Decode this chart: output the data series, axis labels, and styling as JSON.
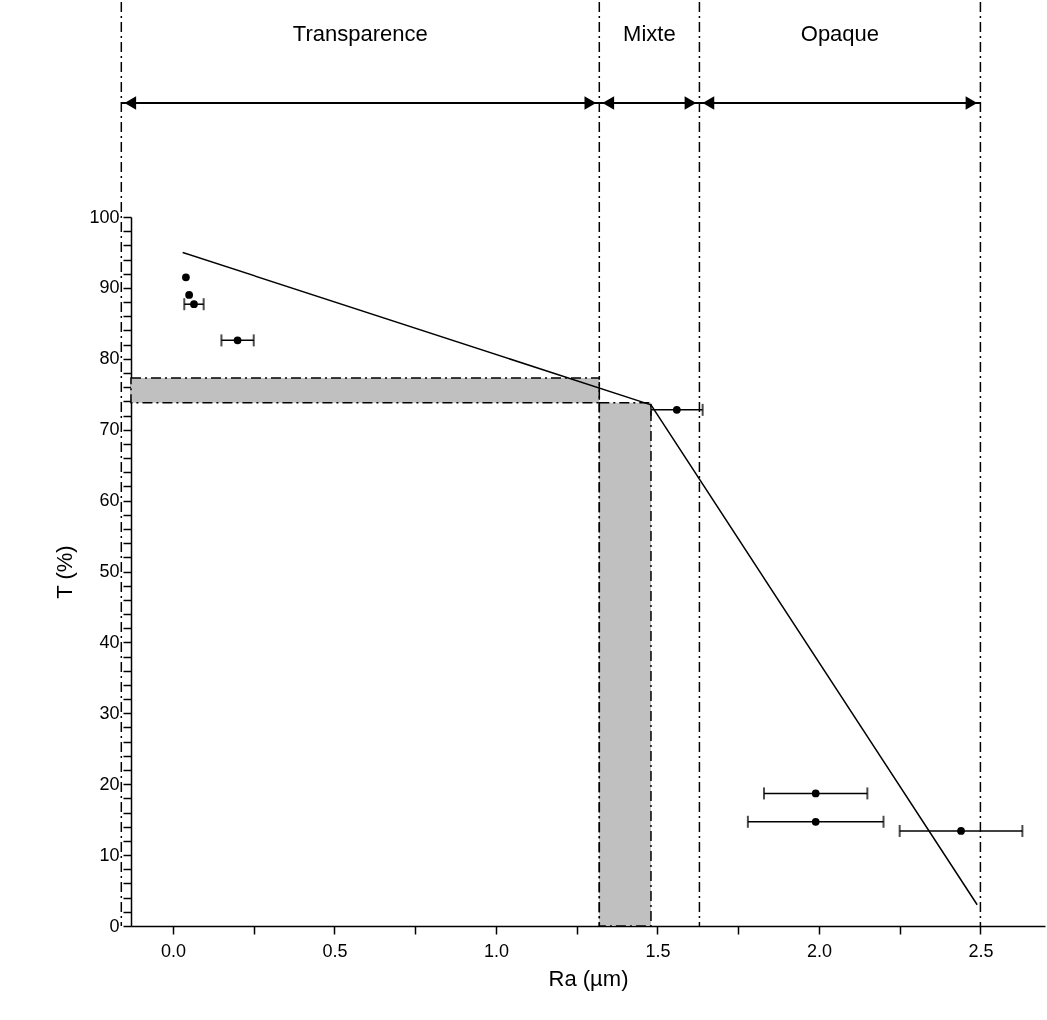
{
  "chart_data": {
    "type": "scatter",
    "xlabel": "Ra (µm)",
    "ylabel": "T (%)",
    "xlim": [
      -0.13,
      2.7
    ],
    "ylim": [
      0,
      100
    ],
    "xticks": [
      {
        "value": 0,
        "label": "0.0"
      },
      {
        "value": 0.25,
        "label": null
      },
      0.5,
      {
        "value": 0.75,
        "label": null
      },
      {
        "value": 1,
        "label": "1.0"
      },
      {
        "value": 1.25,
        "label": null
      },
      1.5,
      {
        "value": 1.75,
        "label": null
      },
      {
        "value": 2,
        "label": "2.0"
      },
      {
        "value": 2.25,
        "label": null
      },
      2.5
    ],
    "yticks": [
      0,
      {
        "value": 2,
        "label": null
      },
      {
        "value": 4,
        "label": null
      },
      {
        "value": 6,
        "label": null
      },
      {
        "value": 8,
        "label": null
      },
      10,
      {
        "value": 12,
        "label": null
      },
      {
        "value": 14,
        "label": null
      },
      {
        "value": 16,
        "label": null
      },
      {
        "value": 18,
        "label": null
      },
      20,
      {
        "value": 22,
        "label": null
      },
      {
        "value": 24,
        "label": null
      },
      {
        "value": 26,
        "label": null
      },
      {
        "value": 28,
        "label": null
      },
      30,
      {
        "value": 32,
        "label": null
      },
      {
        "value": 34,
        "label": null
      },
      {
        "value": 36,
        "label": null
      },
      {
        "value": 38,
        "label": null
      },
      40,
      {
        "value": 42,
        "label": null
      },
      {
        "value": 44,
        "label": null
      },
      {
        "value": 46,
        "label": null
      },
      {
        "value": 48,
        "label": null
      },
      50,
      {
        "value": 52,
        "label": null
      },
      {
        "value": 54,
        "label": null
      },
      {
        "value": 56,
        "label": null
      },
      {
        "value": 58,
        "label": null
      },
      60,
      {
        "value": 62,
        "label": null
      },
      {
        "value": 64,
        "label": null
      },
      {
        "value": 66,
        "label": null
      },
      {
        "value": 68,
        "label": null
      },
      70,
      {
        "value": 72,
        "label": null
      },
      {
        "value": 74,
        "label": null
      },
      {
        "value": 76,
        "label": null
      },
      {
        "value": 78,
        "label": null
      },
      80,
      {
        "value": 82,
        "label": null
      },
      {
        "value": 84,
        "label": null
      },
      {
        "value": 86,
        "label": null
      },
      {
        "value": 88,
        "label": null
      },
      90,
      {
        "value": 92,
        "label": null
      },
      {
        "value": 94,
        "label": null
      },
      {
        "value": 96,
        "label": null
      },
      {
        "value": 98,
        "label": null
      },
      100
    ],
    "grid": false,
    "series": [
      {
        "type": "line",
        "color": "#000000",
        "x": [
          0.03,
          1.48,
          2.49
        ],
        "values": [
          95,
          73.5,
          3
        ]
      },
      {
        "type": "scatter",
        "color": "#000000",
        "x": [
          0.04,
          0.05,
          0.065,
          0.2,
          1.56,
          1.99,
          1.99,
          2.44
        ],
        "values": [
          91.5,
          89,
          87.7,
          82.6,
          72.8,
          18.7,
          14.7,
          13.4
        ],
        "xerrors": [
          null,
          null,
          0.03,
          0.05,
          0.08,
          0.16,
          0.21,
          0.19
        ]
      }
    ],
    "bands": [
      {
        "axis": "y",
        "from": 73.8,
        "to": 77.3,
        "color": "#c0c0c0"
      },
      {
        "axis": "x",
        "from": 1.32,
        "to": 1.48,
        "color": "#c0c0c0"
      }
    ],
    "ref_lines": [
      {
        "axis": "x",
        "value": -0.16,
        "color": "#000000"
      },
      {
        "axis": "x",
        "value": 1.32,
        "color": "#000000"
      },
      {
        "axis": "x",
        "value": 1.63,
        "color": "#000000"
      },
      {
        "axis": "x",
        "value": 2.5,
        "color": "#000000"
      }
    ],
    "annotations": [
      "Transparence",
      "Mixte",
      "Opaque"
    ]
  }
}
